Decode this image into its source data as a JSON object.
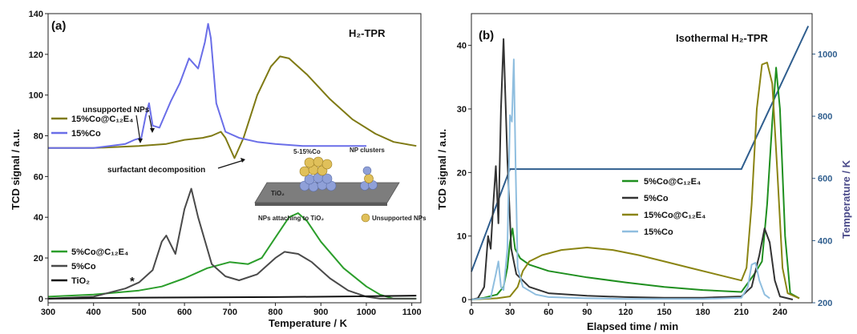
{
  "chart_data": [
    {
      "type": "line",
      "panel_label": "(a)",
      "title": "H₂-TPR",
      "xlabel": "Temperature / K",
      "ylabel": "TCD signal / a.u.",
      "xlim": [
        300,
        1120
      ],
      "ylim": [
        -2,
        140
      ],
      "x_ticks": [
        300,
        400,
        500,
        600,
        700,
        800,
        900,
        1000,
        1100
      ],
      "y_ticks": [
        0,
        20,
        40,
        60,
        80,
        100,
        120,
        140
      ],
      "legend_upper": [
        "15%Co@C₁₂E₄",
        "15%Co"
      ],
      "legend_lower": [
        "5%Co@C₁₂E₄",
        "5%Co",
        "TiO₂"
      ],
      "annotations": {
        "unsupported": "unsupported NPs",
        "surfactant": "surfactant decomposition",
        "asterisk": "*"
      },
      "inset": {
        "loading": "5-15%Co",
        "clusters": "NP clusters",
        "support": "TiO₂",
        "attach": "NPs attaching to TiO₂",
        "unsupported": "Unsupported NPs"
      },
      "series": [
        {
          "name": "15%Co@C₁₂E₄",
          "color": "#7f7a14",
          "x": [
            300,
            400,
            500,
            560,
            600,
            640,
            660,
            680,
            690,
            710,
            730,
            760,
            790,
            810,
            830,
            870,
            920,
            970,
            1020,
            1060,
            1110
          ],
          "y": [
            74,
            74,
            75,
            76,
            78,
            79,
            80,
            82,
            79,
            69,
            79,
            100,
            114,
            119,
            118,
            110,
            98,
            88,
            81,
            77,
            75
          ]
        },
        {
          "name": "15%Co",
          "color": "#6a6ee8",
          "x": [
            300,
            400,
            470,
            490,
            505,
            515,
            522,
            530,
            545,
            570,
            590,
            610,
            630,
            645,
            652,
            658,
            670,
            690,
            720,
            760,
            800,
            860,
            920,
            1000
          ],
          "y": [
            74,
            74,
            76,
            78,
            79,
            90,
            96,
            85,
            84,
            97,
            106,
            118,
            113,
            126,
            135,
            128,
            96,
            82,
            79,
            77,
            76,
            75,
            75,
            75
          ]
        },
        {
          "name": "5%Co@C₁₂E₄",
          "color": "#2b9e2b",
          "x": [
            300,
            400,
            500,
            550,
            600,
            650,
            700,
            740,
            770,
            800,
            830,
            850,
            870,
            900,
            950,
            1000,
            1030,
            1060,
            1110
          ],
          "y": [
            1,
            2,
            4,
            6,
            10,
            15,
            18,
            17,
            20,
            30,
            40,
            42,
            38,
            28,
            15,
            6,
            2,
            0,
            0
          ]
        },
        {
          "name": "5%Co",
          "color": "#4a4a4a",
          "x": [
            300,
            400,
            470,
            500,
            530,
            550,
            560,
            580,
            600,
            615,
            630,
            660,
            690,
            720,
            760,
            800,
            820,
            850,
            880,
            920,
            960,
            1000,
            1030,
            1060,
            1110
          ],
          "y": [
            0,
            1,
            5,
            8,
            14,
            28,
            31,
            22,
            44,
            54,
            40,
            17,
            11,
            9,
            12,
            20,
            23,
            22,
            18,
            10,
            4,
            1,
            0,
            0,
            0
          ]
        },
        {
          "name": "TiO₂",
          "color": "#111111",
          "x": [
            300,
            500,
            800,
            1000,
            1110
          ],
          "y": [
            0,
            0.5,
            0.8,
            1.2,
            1.5
          ]
        }
      ]
    },
    {
      "type": "line",
      "panel_label": "(b)",
      "title": "Isothermal H₂-TPR",
      "xlabel": "Elapsed time / min",
      "ylabel": "TCD signal / a.u.",
      "y2label": "Temperature / K",
      "xlim": [
        0,
        265
      ],
      "ylim": [
        -0.5,
        45
      ],
      "y2lim": [
        200,
        1130
      ],
      "x_ticks": [
        0,
        30,
        60,
        90,
        120,
        150,
        180,
        210,
        240
      ],
      "y_ticks": [
        0,
        10,
        20,
        30,
        40
      ],
      "y2_ticks": [
        200,
        400,
        600,
        800,
        1000
      ],
      "legend": [
        "5%Co@C₁₂E₄",
        "5%Co",
        "15%Co@C₁₂E₄",
        "15%Co"
      ],
      "temperature_profile": {
        "color": "#2f5e8e",
        "x": [
          0,
          30,
          210,
          262
        ],
        "y": [
          300,
          630,
          630,
          1090
        ]
      },
      "series": [
        {
          "name": "5%Co@C₁₂E₄",
          "color": "#1f8f1f",
          "x": [
            0,
            10,
            20,
            25,
            28,
            30,
            32,
            34,
            38,
            45,
            60,
            90,
            120,
            150,
            180,
            210,
            220,
            226,
            230,
            234,
            237,
            240,
            244,
            248,
            255
          ],
          "y": [
            0,
            0.3,
            0.8,
            2,
            5,
            9,
            11.2,
            8,
            6.5,
            5.5,
            4.5,
            3.5,
            2.7,
            2,
            1.5,
            1.2,
            4,
            6,
            15,
            28,
            36.5,
            30,
            10,
            1,
            0.2
          ]
        },
        {
          "name": "5%Co",
          "color": "#333333",
          "x": [
            0,
            5,
            10,
            13,
            15,
            17,
            19,
            21,
            23,
            25,
            28,
            31,
            35,
            45,
            60,
            90,
            120,
            150,
            180,
            210,
            218,
            224,
            228,
            232,
            236,
            240,
            250
          ],
          "y": [
            0,
            0.2,
            2,
            10,
            8,
            15,
            21,
            12,
            30,
            41,
            22,
            8,
            4,
            2,
            1,
            0.6,
            0.4,
            0.3,
            0.3,
            0.5,
            2,
            7,
            11.2,
            9,
            3,
            0.5,
            0
          ]
        },
        {
          "name": "15%Co@C₁₂E₄",
          "color": "#8a8412",
          "x": [
            0,
            20,
            30,
            36,
            40,
            45,
            55,
            70,
            90,
            110,
            130,
            150,
            170,
            190,
            210,
            214,
            218,
            222,
            226,
            230,
            234,
            238,
            242,
            246,
            255
          ],
          "y": [
            0,
            0.2,
            0.5,
            2,
            4.5,
            6,
            7,
            7.8,
            8.2,
            7.8,
            7,
            6,
            5,
            4,
            3,
            5,
            15,
            30,
            37,
            37.3,
            34,
            20,
            5,
            1,
            0.2
          ]
        },
        {
          "name": "15%Co",
          "color": "#8fbedf",
          "x": [
            0,
            15,
            19,
            21,
            23,
            25,
            28,
            30,
            31.5,
            33,
            34.5,
            36,
            40,
            50,
            60,
            90,
            120,
            150,
            180,
            210,
            215,
            218,
            221,
            224,
            228,
            232
          ],
          "y": [
            0,
            0.3,
            4,
            6,
            2,
            1.5,
            8,
            29,
            28,
            37.8,
            20,
            5,
            2,
            0.8,
            0.4,
            0.2,
            0.1,
            0.1,
            0.1,
            0.3,
            2,
            5.5,
            5.8,
            3,
            0.8,
            0.2
          ]
        }
      ]
    }
  ]
}
